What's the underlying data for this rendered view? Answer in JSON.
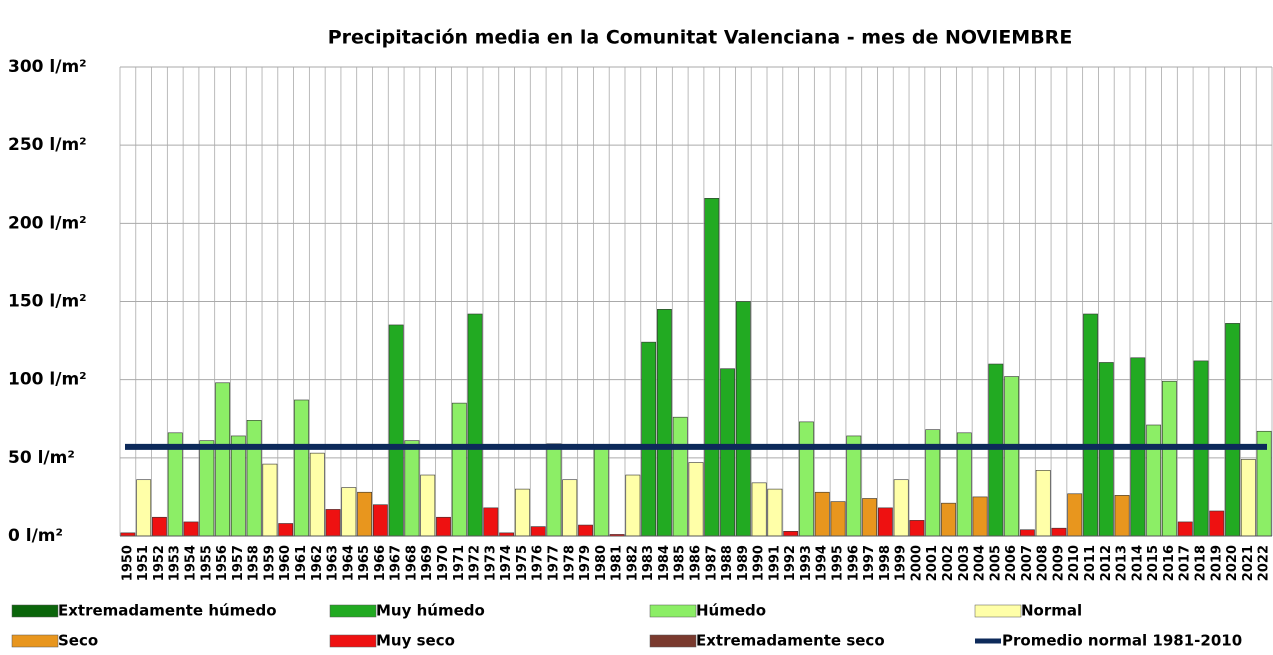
{
  "chart_data": {
    "type": "bar",
    "title": "Precipitación media en la Comunitat Valenciana - mes de NOVIEMBRE",
    "categories": [
      "1950",
      "1951",
      "1952",
      "1953",
      "1954",
      "1955",
      "1956",
      "1957",
      "1958",
      "1959",
      "1960",
      "1961",
      "1962",
      "1963",
      "1964",
      "1965",
      "1966",
      "1967",
      "1968",
      "1969",
      "1970",
      "1971",
      "1972",
      "1973",
      "1974",
      "1975",
      "1976",
      "1977",
      "1978",
      "1979",
      "1980",
      "1981",
      "1982",
      "1983",
      "1984",
      "1985",
      "1986",
      "1987",
      "1988",
      "1989",
      "1990",
      "1991",
      "1992",
      "1993",
      "1994",
      "1995",
      "1996",
      "1997",
      "1998",
      "1999",
      "2000",
      "2001",
      "2002",
      "2003",
      "2004",
      "2005",
      "2006",
      "2007",
      "2008",
      "2009",
      "2010",
      "2011",
      "2012",
      "2013",
      "2014",
      "2015",
      "2016",
      "2017",
      "2018",
      "2019",
      "2020",
      "2021",
      "2022"
    ],
    "series": [
      {
        "name": "Extremadamente húmedo",
        "color": "#0b650b",
        "values": [
          null,
          null,
          null,
          null,
          null,
          null,
          null,
          null,
          null,
          null,
          null,
          null,
          null,
          null,
          null,
          null,
          null,
          null,
          null,
          null,
          null,
          null,
          null,
          null,
          null,
          null,
          null,
          null,
          null,
          null,
          null,
          null,
          null,
          null,
          null,
          null,
          null,
          null,
          null,
          null,
          null,
          null,
          null,
          null,
          null,
          null,
          null,
          null,
          null,
          null,
          null,
          null,
          null,
          null,
          null,
          null,
          null,
          null,
          null,
          null,
          null,
          null,
          null,
          null,
          null,
          null,
          null,
          null,
          null,
          null,
          null,
          null,
          null
        ]
      },
      {
        "name": "Muy húmedo",
        "color": "#22aa22",
        "values": [
          null,
          null,
          null,
          null,
          null,
          null,
          null,
          null,
          null,
          null,
          null,
          null,
          null,
          null,
          null,
          null,
          null,
          135,
          null,
          null,
          null,
          null,
          142,
          null,
          null,
          null,
          null,
          null,
          null,
          null,
          null,
          null,
          null,
          124,
          145,
          null,
          null,
          216,
          107,
          150,
          null,
          null,
          null,
          null,
          null,
          null,
          null,
          null,
          null,
          null,
          null,
          null,
          null,
          null,
          null,
          110,
          null,
          null,
          null,
          null,
          null,
          142,
          111,
          null,
          114,
          null,
          null,
          null,
          112,
          null,
          136,
          null,
          null
        ]
      },
      {
        "name": "Húmedo",
        "color": "#8cee66",
        "values": [
          null,
          null,
          null,
          66,
          null,
          61,
          98,
          64,
          74,
          null,
          null,
          87,
          null,
          null,
          null,
          null,
          null,
          null,
          61,
          null,
          null,
          85,
          null,
          null,
          null,
          null,
          null,
          59,
          null,
          null,
          57,
          null,
          null,
          null,
          null,
          76,
          null,
          null,
          null,
          null,
          null,
          null,
          null,
          73,
          null,
          null,
          64,
          null,
          null,
          null,
          null,
          68,
          null,
          66,
          null,
          null,
          102,
          null,
          null,
          null,
          null,
          null,
          null,
          null,
          null,
          71,
          99,
          null,
          null,
          null,
          null,
          null,
          67
        ]
      },
      {
        "name": "Normal",
        "color": "#ffffa8",
        "values": [
          null,
          36,
          null,
          null,
          null,
          null,
          null,
          null,
          null,
          46,
          null,
          null,
          53,
          null,
          31,
          null,
          null,
          null,
          null,
          39,
          null,
          null,
          null,
          null,
          null,
          30,
          null,
          null,
          36,
          null,
          null,
          null,
          39,
          null,
          null,
          null,
          47,
          null,
          null,
          null,
          34,
          30,
          null,
          null,
          null,
          null,
          null,
          null,
          null,
          36,
          null,
          null,
          null,
          null,
          null,
          null,
          null,
          null,
          42,
          null,
          null,
          null,
          null,
          null,
          null,
          null,
          null,
          null,
          null,
          null,
          null,
          49,
          null
        ]
      },
      {
        "name": "Seco",
        "color": "#e8961e",
        "values": [
          null,
          null,
          null,
          null,
          null,
          null,
          null,
          null,
          null,
          null,
          null,
          null,
          null,
          null,
          null,
          28,
          null,
          null,
          null,
          null,
          null,
          null,
          null,
          null,
          null,
          null,
          null,
          null,
          null,
          null,
          null,
          null,
          null,
          null,
          null,
          null,
          null,
          null,
          null,
          null,
          null,
          null,
          null,
          null,
          28,
          22,
          null,
          24,
          null,
          null,
          null,
          null,
          21,
          null,
          25,
          null,
          null,
          null,
          null,
          null,
          27,
          null,
          null,
          26,
          null,
          null,
          null,
          null,
          null,
          null,
          null,
          null,
          null
        ]
      },
      {
        "name": "Muy seco",
        "color": "#ee1111",
        "values": [
          2,
          null,
          12,
          null,
          9,
          null,
          null,
          null,
          null,
          null,
          8,
          null,
          null,
          17,
          null,
          null,
          20,
          null,
          null,
          null,
          12,
          null,
          null,
          18,
          2,
          null,
          6,
          null,
          null,
          7,
          null,
          1,
          null,
          null,
          null,
          null,
          null,
          null,
          null,
          null,
          null,
          null,
          3,
          null,
          null,
          null,
          null,
          null,
          18,
          null,
          10,
          null,
          null,
          null,
          null,
          null,
          null,
          4,
          null,
          5,
          null,
          null,
          null,
          null,
          null,
          null,
          null,
          9,
          null,
          16,
          null,
          null,
          null
        ]
      },
      {
        "name": "Extremadamente seco",
        "color": "#7a3a2e",
        "values": [
          null,
          null,
          null,
          null,
          null,
          null,
          null,
          null,
          null,
          null,
          null,
          null,
          null,
          null,
          null,
          null,
          null,
          null,
          null,
          null,
          null,
          null,
          null,
          null,
          null,
          null,
          null,
          null,
          null,
          null,
          null,
          null,
          null,
          null,
          null,
          null,
          null,
          null,
          null,
          null,
          null,
          null,
          null,
          null,
          null,
          null,
          null,
          null,
          null,
          null,
          null,
          null,
          null,
          null,
          null,
          null,
          null,
          null,
          null,
          null,
          null,
          null,
          null,
          null,
          null,
          null,
          null,
          null,
          null,
          null,
          null,
          null,
          null
        ]
      }
    ],
    "reference_line": {
      "name": "Promedio normal 1981-2010",
      "value": 57,
      "color": "#0d2a5a"
    },
    "ylim": [
      0,
      300
    ],
    "yticks": [
      {
        "value": 0,
        "label": "0 l/m²"
      },
      {
        "value": 50,
        "label": "50 l/m²"
      },
      {
        "value": 100,
        "label": "100 l/m²"
      },
      {
        "value": 150,
        "label": "150 l/m²"
      },
      {
        "value": 200,
        "label": "200 l/m²"
      },
      {
        "value": 250,
        "label": "250 l/m²"
      },
      {
        "value": 300,
        "label": "300 l/m²"
      }
    ],
    "grid": true
  }
}
